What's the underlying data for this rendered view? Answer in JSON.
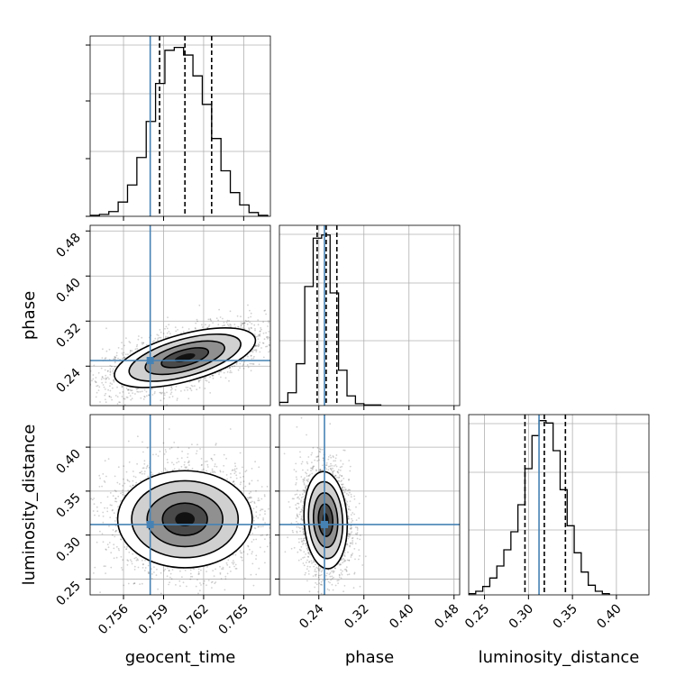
{
  "chart_data": {
    "type": "corner",
    "parameters": [
      "geocent_time",
      "phase",
      "luminosity_distance"
    ],
    "truth_color": "#4682b4",
    "grid": true,
    "axes": {
      "geocent_time": {
        "range": [
          0.7535,
          0.767
        ],
        "ticks": [
          "0.756",
          "0.759",
          "0.762",
          "0.765"
        ],
        "tick_values": [
          0.756,
          0.759,
          0.762,
          0.765
        ],
        "label": "geocent_time"
      },
      "phase": {
        "range": [
          0.17,
          0.49
        ],
        "ticks": [
          "0.24",
          "0.32",
          "0.40",
          "0.48"
        ],
        "tick_values": [
          0.24,
          0.32,
          0.4,
          0.48
        ],
        "label": "phase"
      },
      "luminosity_distance": {
        "range": [
          0.232,
          0.437
        ],
        "ticks": [
          "0.25",
          "0.30",
          "0.35",
          "0.40"
        ],
        "tick_values": [
          0.25,
          0.3,
          0.35,
          0.4
        ],
        "label": "luminosity_distance"
      }
    },
    "truths": {
      "geocent_time": 0.758,
      "phase": 0.25,
      "luminosity_distance": 0.312
    },
    "quantiles": {
      "geocent_time": [
        0.7587,
        0.7606,
        0.7626
      ],
      "phase": [
        0.237,
        0.253,
        0.272
      ],
      "luminosity_distance": [
        0.296,
        0.318,
        0.342
      ]
    },
    "histograms": {
      "geocent_time": {
        "edges": [
          0.7535,
          0.7542,
          0.7549,
          0.7556,
          0.7563,
          0.757,
          0.7577,
          0.7584,
          0.7591,
          0.7598,
          0.7605,
          0.7612,
          0.7619,
          0.7626,
          0.7633,
          0.764,
          0.7647,
          0.7654,
          0.7661,
          0.7668
        ],
        "counts": [
          1,
          2,
          5,
          15,
          33,
          62,
          100,
          140,
          175,
          178,
          170,
          148,
          118,
          82,
          48,
          25,
          12,
          4,
          1
        ],
        "ymax": 190
      },
      "phase": {
        "edges": [
          0.17,
          0.185,
          0.2,
          0.215,
          0.23,
          0.245,
          0.26,
          0.275,
          0.29,
          0.305,
          0.32,
          0.335,
          0.35
        ],
        "counts": [
          5,
          20,
          65,
          185,
          260,
          265,
          175,
          55,
          15,
          3,
          1,
          1
        ],
        "ymax": 280
      },
      "luminosity_distance": {
        "edges": [
          0.232,
          0.24,
          0.248,
          0.256,
          0.264,
          0.272,
          0.28,
          0.288,
          0.296,
          0.304,
          0.312,
          0.32,
          0.328,
          0.336,
          0.344,
          0.352,
          0.36,
          0.368,
          0.376,
          0.384,
          0.392
        ],
        "counts": [
          2,
          6,
          14,
          28,
          48,
          75,
          105,
          150,
          210,
          265,
          290,
          286,
          240,
          175,
          115,
          70,
          38,
          16,
          6,
          2
        ],
        "ymax": 300
      }
    },
    "contours_2d": [
      {
        "x": "geocent_time",
        "y": "phase",
        "center": [
          0.7606,
          0.255
        ],
        "sd": [
          0.0022,
          0.022
        ],
        "corr": 0.58
      },
      {
        "x": "geocent_time",
        "y": "luminosity_distance",
        "center": [
          0.7606,
          0.318
        ],
        "sd": [
          0.0021,
          0.023
        ],
        "corr": 0.0
      },
      {
        "x": "phase",
        "y": "luminosity_distance",
        "center": [
          0.252,
          0.317
        ],
        "sd": [
          0.016,
          0.023
        ],
        "corr": -0.1
      }
    ]
  }
}
